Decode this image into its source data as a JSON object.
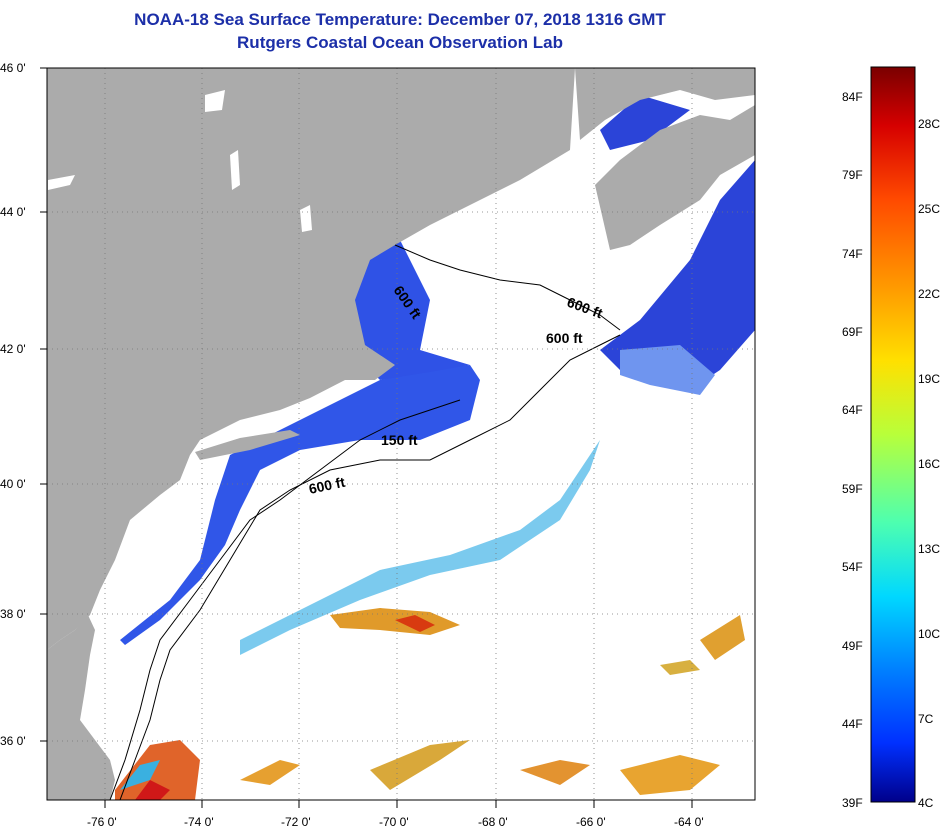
{
  "title_line1": "NOAA-18 Sea Surface Temperature:  December 07, 2018 1316 GMT",
  "title_line2": "Rutgers Coastal Ocean Observation Lab",
  "map": {
    "lat_labels": [
      "46 0'",
      "44 0'",
      "42 0'",
      "40 0'",
      "38 0'",
      "36 0'"
    ],
    "lon_labels": [
      "-76 0'",
      "-74 0'",
      "-72 0'",
      "-70 0'",
      "-68 0'",
      "-66 0'",
      "-64 0'"
    ],
    "contour_labels": [
      "600 ft",
      "600 ft",
      "600 ft",
      "150 ft",
      "600 ft"
    ],
    "colors": {
      "land": "#ababab",
      "water_cold": "#2e4fe0",
      "cloud": "#ffffff",
      "frame": "#000000"
    }
  },
  "legend": {
    "fahrenheit": [
      "84F",
      "79F",
      "74F",
      "69F",
      "64F",
      "59F",
      "54F",
      "49F",
      "44F",
      "39F"
    ],
    "celsius": [
      "28C",
      "25C",
      "22C",
      "19C",
      "16C",
      "13C",
      "10C",
      "7C",
      "4C"
    ],
    "colors": [
      "#7a0000",
      "#d60000",
      "#ff4a00",
      "#ff9a00",
      "#ffe000",
      "#b8ff3a",
      "#4dffb0",
      "#00d8ff",
      "#0080ff",
      "#0030ff",
      "#00008a"
    ]
  }
}
